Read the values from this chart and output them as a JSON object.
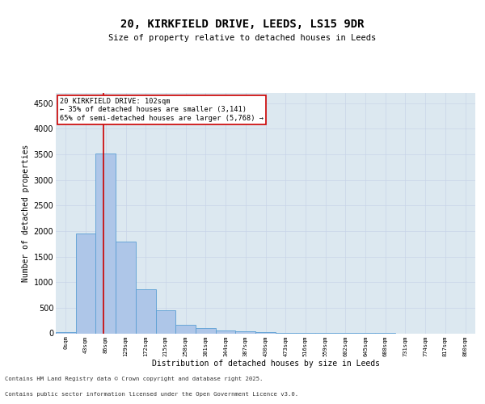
{
  "title_line1": "20, KIRKFIELD DRIVE, LEEDS, LS15 9DR",
  "title_line2": "Size of property relative to detached houses in Leeds",
  "xlabel": "Distribution of detached houses by size in Leeds",
  "ylabel": "Number of detached properties",
  "bin_labels": [
    "0sqm",
    "43sqm",
    "86sqm",
    "129sqm",
    "172sqm",
    "215sqm",
    "258sqm",
    "301sqm",
    "344sqm",
    "387sqm",
    "430sqm",
    "473sqm",
    "516sqm",
    "559sqm",
    "602sqm",
    "645sqm",
    "688sqm",
    "731sqm",
    "774sqm",
    "817sqm",
    "860sqm"
  ],
  "bar_values": [
    30,
    1950,
    3520,
    1800,
    860,
    450,
    170,
    100,
    60,
    40,
    25,
    10,
    5,
    3,
    2,
    1,
    1,
    0,
    0,
    0,
    0
  ],
  "bar_color": "#aec6e8",
  "bar_edge_color": "#5a9fd4",
  "property_sqm": 102,
  "annotation_text_line1": "20 KIRKFIELD DRIVE: 102sqm",
  "annotation_text_line2": "← 35% of detached houses are smaller (3,141)",
  "annotation_text_line3": "65% of semi-detached houses are larger (5,768) →",
  "annotation_box_color": "#ffffff",
  "annotation_box_edge": "#cc0000",
  "property_line_color": "#cc0000",
  "grid_color": "#c8d4e8",
  "bg_color": "#dce8f0",
  "ylim": [
    0,
    4700
  ],
  "yticks": [
    0,
    500,
    1000,
    1500,
    2000,
    2500,
    3000,
    3500,
    4000,
    4500
  ],
  "footer_line1": "Contains HM Land Registry data © Crown copyright and database right 2025.",
  "footer_line2": "Contains public sector information licensed under the Open Government Licence v3.0."
}
